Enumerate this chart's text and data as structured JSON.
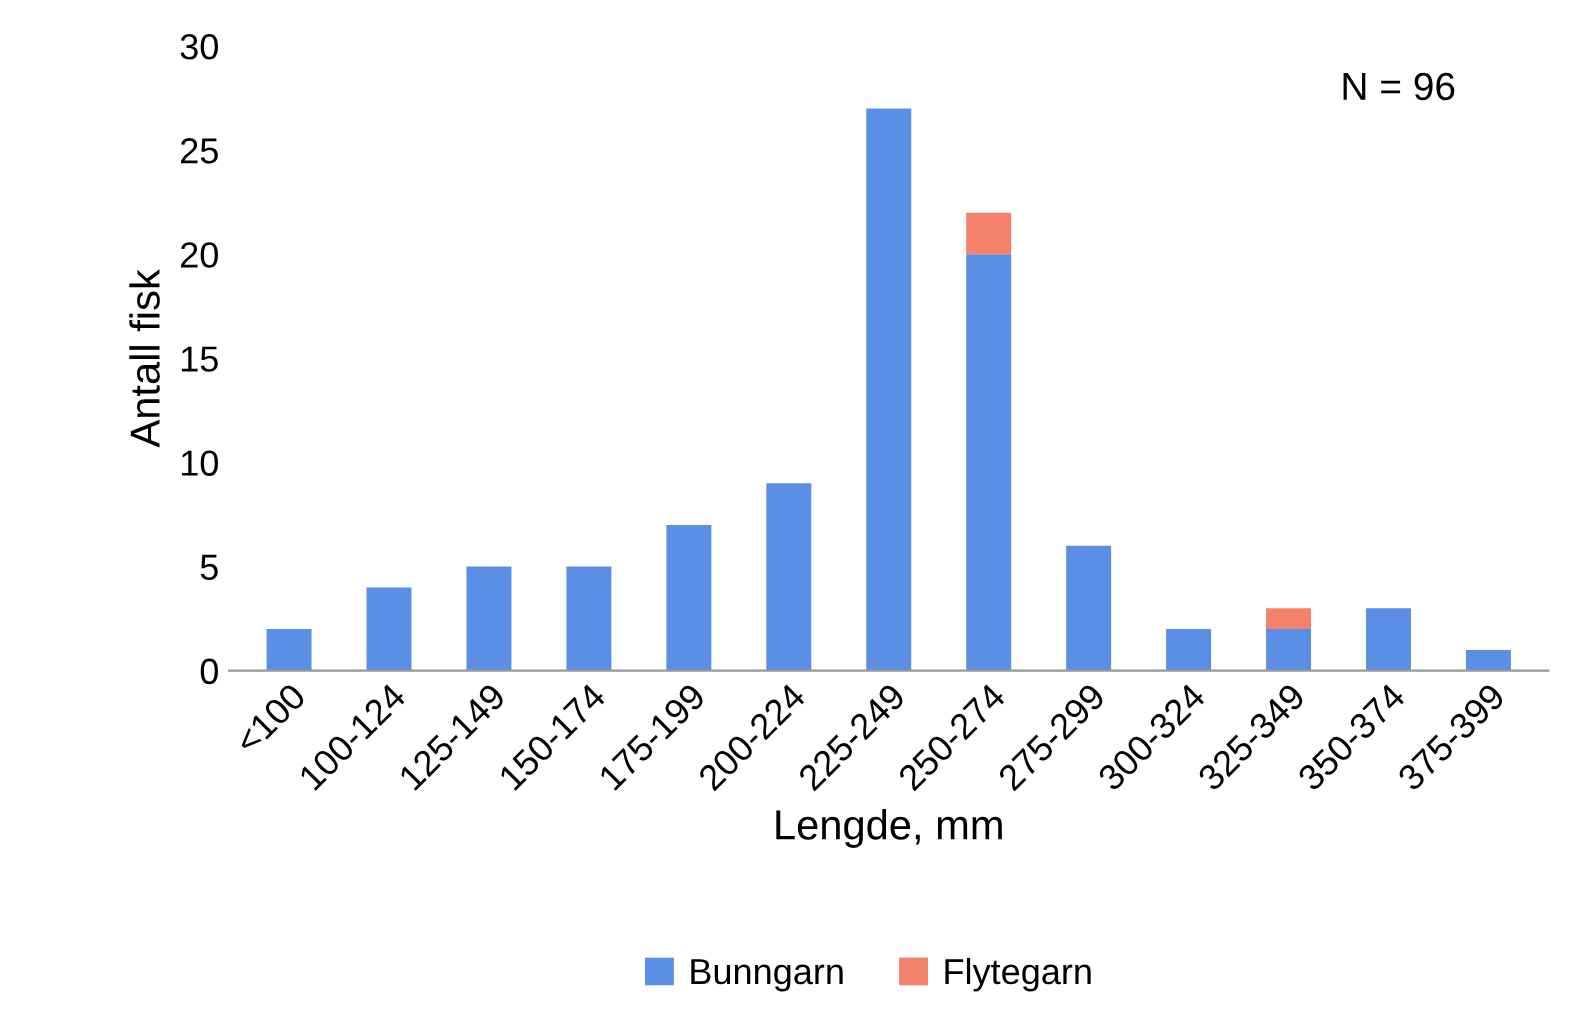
{
  "chart_data": {
    "type": "bar",
    "stacked": true,
    "xlabel": "Lengde, mm",
    "ylabel": "Antall fisk",
    "categories": [
      "<100",
      "100-124",
      "125-149",
      "150-174",
      "175-199",
      "200-224",
      "225-249",
      "250-274",
      "275-299",
      "300-324",
      "325-349",
      "350-374",
      "375-399"
    ],
    "series": [
      {
        "name": "Bunngarn",
        "color": "#5b8fe6",
        "values": [
          2,
          4,
          5,
          5,
          7,
          9,
          27,
          20,
          6,
          2,
          2,
          3,
          1
        ]
      },
      {
        "name": "Flytegarn",
        "color": "#f4826b",
        "values": [
          0,
          0,
          0,
          0,
          0,
          0,
          0,
          2,
          0,
          0,
          1,
          0,
          0
        ]
      }
    ],
    "ylim": [
      0,
      30
    ],
    "yticks": [
      0,
      5,
      10,
      15,
      20,
      25,
      30
    ],
    "grid": false,
    "legend": "bottom",
    "annotations": [
      "N = 96"
    ]
  }
}
